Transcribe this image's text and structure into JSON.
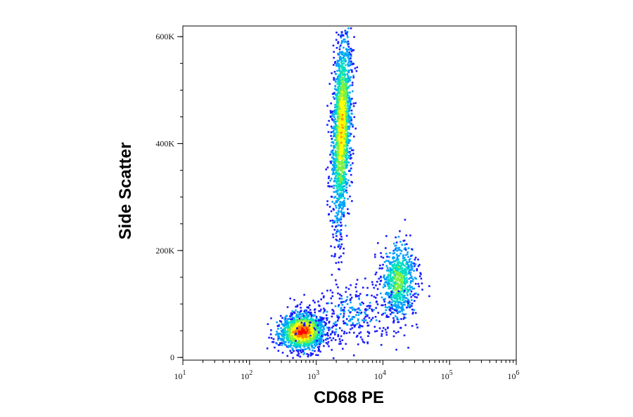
{
  "chart_data": {
    "type": "scatter",
    "style": "density-colored flow cytometry dot plot",
    "xlabel": "CD68 PE",
    "ylabel": "Side Scatter",
    "x_scale": "log",
    "xlim": [
      10,
      1000000
    ],
    "x_ticks": [
      {
        "value": 10,
        "base": "10",
        "exp": "1"
      },
      {
        "value": 100,
        "base": "10",
        "exp": "2"
      },
      {
        "value": 1000,
        "base": "10",
        "exp": "3"
      },
      {
        "value": 10000,
        "base": "10",
        "exp": "4"
      },
      {
        "value": 100000,
        "base": "10",
        "exp": "5"
      },
      {
        "value": 1000000,
        "base": "10",
        "exp": "6"
      }
    ],
    "y_scale": "linear",
    "ylim": [
      -5000,
      620000
    ],
    "y_ticks": [
      {
        "value": 0,
        "label": "0"
      },
      {
        "value": 200000,
        "label": "200K"
      },
      {
        "value": 400000,
        "label": "400K"
      },
      {
        "value": 600000,
        "label": "600K"
      }
    ],
    "density_colors": [
      "#1a1aff",
      "#00a0ff",
      "#00e0c0",
      "#80f040",
      "#ffff00",
      "#ff8000",
      "#ff0000"
    ],
    "populations": [
      {
        "log10_x_center": 2.78,
        "y_center": 50000,
        "log10_x_sd": 0.17,
        "y_sd": 17000,
        "tilt": 0.25,
        "weight": 0.33,
        "peak_density": 1.0
      },
      {
        "log10_x_center": 3.37,
        "y_center": 430000,
        "log10_x_sd": 0.07,
        "y_sd": 90000,
        "tilt": 1.0,
        "weight": 0.42,
        "peak_density": 0.75
      },
      {
        "log10_x_center": 4.22,
        "y_center": 145000,
        "log10_x_sd": 0.13,
        "y_sd": 35000,
        "tilt": 0.2,
        "weight": 0.17,
        "peak_density": 0.5
      },
      {
        "log10_x_center": 3.5,
        "y_center": 80000,
        "log10_x_sd": 0.4,
        "y_sd": 30000,
        "tilt": 0.4,
        "weight": 0.08,
        "peak_density": 0.1
      }
    ]
  }
}
